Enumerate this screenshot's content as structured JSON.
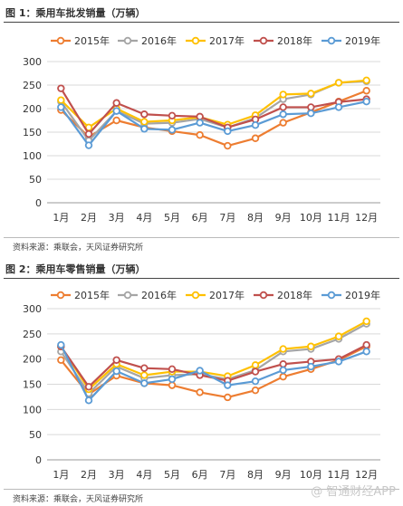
{
  "charts": [
    {
      "title": "图 1：乘用车批发销量（万辆）",
      "source": "资料来源：乘联会，天风证券研究所",
      "chart_data": {
        "type": "line",
        "categories": [
          "1月",
          "2月",
          "3月",
          "4月",
          "5月",
          "6月",
          "7月",
          "8月",
          "9月",
          "10月",
          "11月",
          "12月"
        ],
        "ylim": [
          0,
          300
        ],
        "yticks": [
          0,
          50,
          100,
          150,
          200,
          250,
          300
        ],
        "grid": true,
        "legend": "top",
        "series": [
          {
            "name": "2015年",
            "color": "#ED7D31",
            "values": [
              197,
              140,
              175,
              160,
              152,
              144,
              121,
              137,
              170,
              192,
              215,
              238
            ]
          },
          {
            "name": "2016年",
            "color": "#A5A5A5",
            "values": [
              215,
              132,
              195,
              168,
              170,
              178,
              160,
              180,
              220,
              230,
              255,
              258
            ]
          },
          {
            "name": "2017年",
            "color": "#FFC000",
            "values": [
              218,
              160,
              200,
              172,
              175,
              182,
              166,
              186,
              230,
              232,
              255,
              260
            ]
          },
          {
            "name": "2018年",
            "color": "#C0504D",
            "values": [
              243,
              146,
              212,
              188,
              185,
              183,
              160,
              177,
              203,
              203,
              214,
              220
            ]
          },
          {
            "name": "2019年",
            "color": "#5B9BD5",
            "values": [
              203,
              122,
              195,
              157,
              155,
              170,
              152,
              165,
              188,
              190,
              203,
              215
            ]
          }
        ]
      }
    },
    {
      "title": "图 2：乘用车零售销量（万辆）",
      "source": "资料来源：乘联会，天风证券研究所",
      "chart_data": {
        "type": "line",
        "categories": [
          "1月",
          "2月",
          "3月",
          "4月",
          "5月",
          "6月",
          "7月",
          "8月",
          "9月",
          "10月",
          "11月",
          "12月"
        ],
        "ylim": [
          0,
          300
        ],
        "yticks": [
          0,
          50,
          100,
          150,
          200,
          250,
          300
        ],
        "grid": true,
        "legend": "top",
        "series": [
          {
            "name": "2015年",
            "color": "#ED7D31",
            "values": [
              198,
              130,
              167,
              152,
              148,
              134,
              124,
              138,
              165,
              180,
              198,
              225
            ]
          },
          {
            "name": "2016年",
            "color": "#A5A5A5",
            "values": [
              215,
              132,
              185,
              162,
              168,
              170,
              160,
              178,
              215,
              220,
              240,
              270
            ]
          },
          {
            "name": "2017年",
            "color": "#FFC000",
            "values": [
              225,
              140,
              190,
              168,
              175,
              175,
              166,
              188,
              220,
              225,
              245,
              275
            ]
          },
          {
            "name": "2018年",
            "color": "#C0504D",
            "values": [
              225,
              145,
              198,
              182,
              180,
              168,
              157,
              175,
              190,
              195,
              200,
              228
            ]
          },
          {
            "name": "2019年",
            "color": "#5B9BD5",
            "values": [
              228,
              118,
              176,
              152,
              160,
              177,
              148,
              156,
              178,
              185,
              195,
              215
            ]
          }
        ]
      }
    }
  ],
  "watermark": "@ 智通财经APP"
}
